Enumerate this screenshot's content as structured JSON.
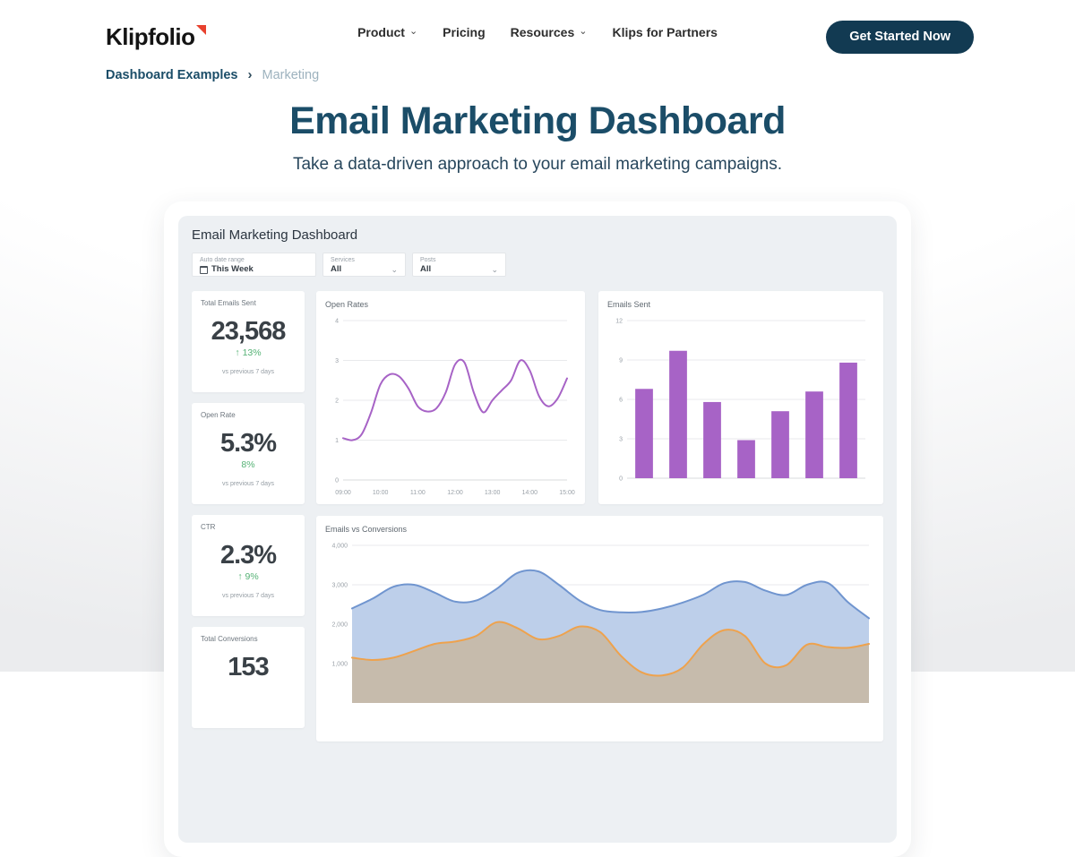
{
  "header": {
    "logo": "Klipfolio",
    "nav": [
      {
        "label": "Product",
        "caret": true
      },
      {
        "label": "Pricing",
        "caret": false
      },
      {
        "label": "Resources",
        "caret": true
      },
      {
        "label": "Klips for Partners",
        "caret": false
      }
    ],
    "cta": "Get Started Now"
  },
  "breadcrumb": {
    "parent": "Dashboard Examples",
    "separator": "›",
    "current": "Marketing"
  },
  "hero": {
    "title": "Email Marketing Dashboard",
    "subtitle": "Take a data-driven approach to your email marketing campaigns."
  },
  "dashboard": {
    "title": "Email Marketing Dashboard",
    "filters": [
      {
        "label": "Auto date range",
        "value": "This Week",
        "icon": "calendar"
      },
      {
        "label": "Services",
        "value": "All",
        "icon": "caret"
      },
      {
        "label": "Posts",
        "value": "All",
        "icon": "caret"
      }
    ],
    "kpis": [
      {
        "label": "Total Emails Sent",
        "value": "23,568",
        "delta": "↑ 13%",
        "note": "vs previous 7 days"
      },
      {
        "label": "Open Rate",
        "value": "5.3%",
        "delta": "8%",
        "note": "vs previous 7 days"
      },
      {
        "label": "CTR",
        "value": "2.3%",
        "delta": "↑ 9%",
        "note": "vs previous 7 days"
      },
      {
        "label": "Total Conversions",
        "value": "153",
        "delta": "",
        "note": ""
      }
    ]
  },
  "chart_data": [
    {
      "type": "line",
      "title": "Open Rates",
      "ylim": [
        0,
        4
      ],
      "yticks": [
        {
          "value": 0,
          "label": "0"
        },
        {
          "value": 1,
          "label": "1"
        },
        {
          "value": 2,
          "label": "2"
        },
        {
          "value": 3,
          "label": "3"
        },
        {
          "value": 4,
          "label": "4"
        }
      ],
      "x_labels": [
        "09:00",
        "10:00",
        "11:00",
        "12:00",
        "13:00",
        "14:00",
        "15:00"
      ],
      "grid": true,
      "legend": "none",
      "series": [
        {
          "name": "Open Rate",
          "color": "#a763c6",
          "values": [
            1.05,
            1.0,
            1.15,
            1.7,
            2.4,
            2.65,
            2.6,
            2.3,
            1.85,
            1.72,
            1.8,
            2.2,
            2.9,
            2.95,
            2.2,
            1.7,
            2.0,
            2.25,
            2.5,
            3.0,
            2.75,
            2.1,
            1.85,
            2.05,
            2.55
          ]
        }
      ]
    },
    {
      "type": "bar",
      "title": "Emails Sent",
      "ylim": [
        0,
        12
      ],
      "yticks": [
        {
          "value": 0,
          "label": "0"
        },
        {
          "value": 3,
          "label": "3"
        },
        {
          "value": 6,
          "label": "6"
        },
        {
          "value": 9,
          "label": "9"
        },
        {
          "value": 12,
          "label": "12"
        }
      ],
      "grid": true,
      "legend": "none",
      "color": "#a763c6",
      "values": [
        6.8,
        9.7,
        5.8,
        2.9,
        5.1,
        6.6,
        8.8
      ]
    },
    {
      "type": "area",
      "title": "Emails vs Conversions",
      "ylim": [
        0,
        4000
      ],
      "yticks": [
        {
          "value": 1000,
          "label": "1,000"
        },
        {
          "value": 2000,
          "label": "2,000"
        },
        {
          "value": 3000,
          "label": "3,000"
        },
        {
          "value": 4000,
          "label": "4,000"
        }
      ],
      "grid": true,
      "legend": "none",
      "series": [
        {
          "name": "Emails",
          "color": "#7095cf",
          "fill": "#bdcfea",
          "values": [
            2400,
            2650,
            2950,
            3000,
            2800,
            2570,
            2600,
            2900,
            3300,
            3340,
            3000,
            2600,
            2360,
            2300,
            2310,
            2400,
            2550,
            2750,
            3040,
            3070,
            2850,
            2740,
            3000,
            3050,
            2550,
            2150
          ]
        },
        {
          "name": "Conversions",
          "color": "#eea24d",
          "fill": "rgba(214,155,71,0.38)",
          "values": [
            1150,
            1090,
            1150,
            1320,
            1500,
            1560,
            1700,
            2050,
            1900,
            1620,
            1700,
            1940,
            1800,
            1200,
            780,
            700,
            900,
            1500,
            1850,
            1700,
            1000,
            960,
            1480,
            1420,
            1400,
            1500
          ]
        }
      ]
    }
  ],
  "colors": {
    "brand_red": "#e8412e",
    "cta_bg": "#123a52",
    "heading": "#1b4d68",
    "kpi_green": "#55b275",
    "purple": "#a763c6",
    "blue": "#7095cf",
    "orange": "#eea24d",
    "panel_bg": "#edf0f3"
  }
}
